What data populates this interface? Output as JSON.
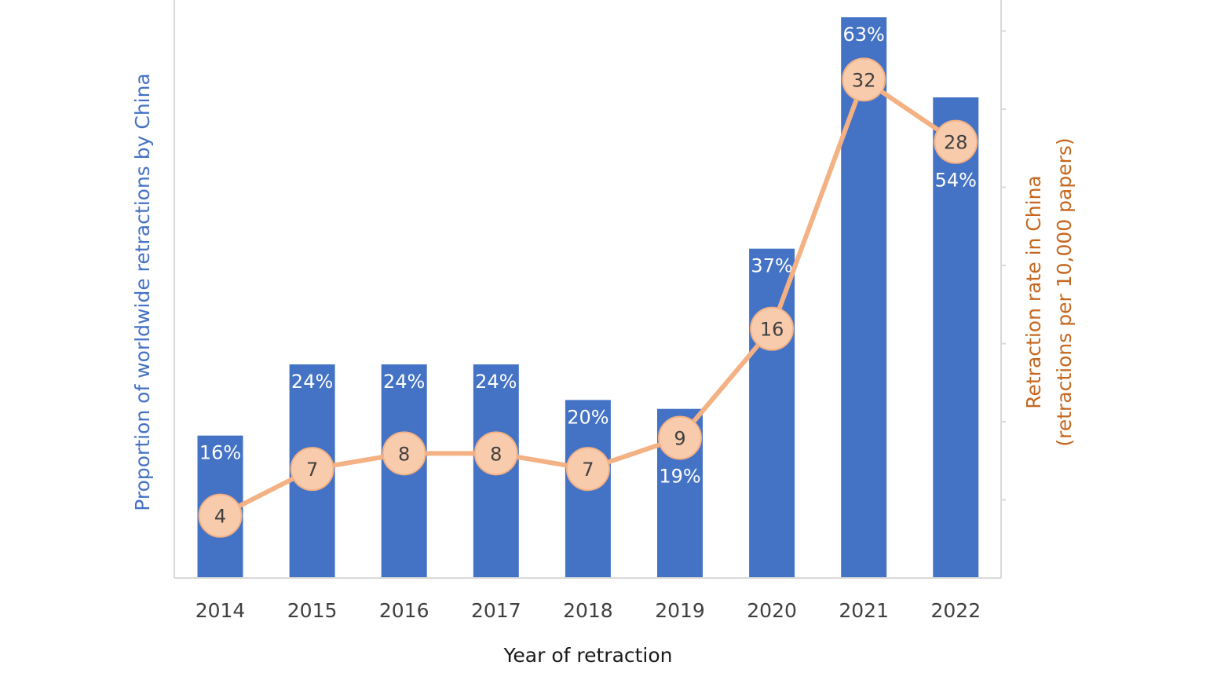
{
  "chart_data": {
    "type": "bar",
    "title": "",
    "categories": [
      "2014",
      "2015",
      "2016",
      "2017",
      "2018",
      "2019",
      "2020",
      "2021",
      "2022"
    ],
    "series": [
      {
        "name": "Proportion of worldwide retractions by China",
        "type": "bar",
        "axis": "left",
        "values": [
          16,
          24,
          24,
          24,
          20,
          19,
          37,
          63,
          54
        ],
        "labels": [
          "16%",
          "24%",
          "24%",
          "24%",
          "20%",
          "19%",
          "37%",
          "63%",
          "54%"
        ],
        "color": "#4472c4"
      },
      {
        "name": "Retraction rate in China (retractions per 10,000 papers)",
        "type": "line",
        "axis": "right",
        "values": [
          4,
          7,
          8,
          8,
          7,
          9,
          16,
          32,
          28
        ],
        "labels": [
          "4",
          "7",
          "8",
          "8",
          "7",
          "9",
          "16",
          "32",
          "28"
        ],
        "color": "#f4b183",
        "marker_fill": "#f8cbad"
      }
    ],
    "xlabel": "Year of retraction",
    "ylabel_left": "Proportion of worldwide retractions by China",
    "ylabel_right": "Retraction rate in China",
    "ylabel_right_sub": "(retractions per 10,000 papers)",
    "ylim_left": [
      0,
      63
    ],
    "ylim_right": [
      0,
      36
    ],
    "grid": false,
    "legend": "none",
    "colors": {
      "axis": "#d9d9d9",
      "tick_text": "#404040",
      "left_label": "#4472c4",
      "right_label": "#c5671f",
      "marker_stroke": "#f4b183"
    }
  }
}
